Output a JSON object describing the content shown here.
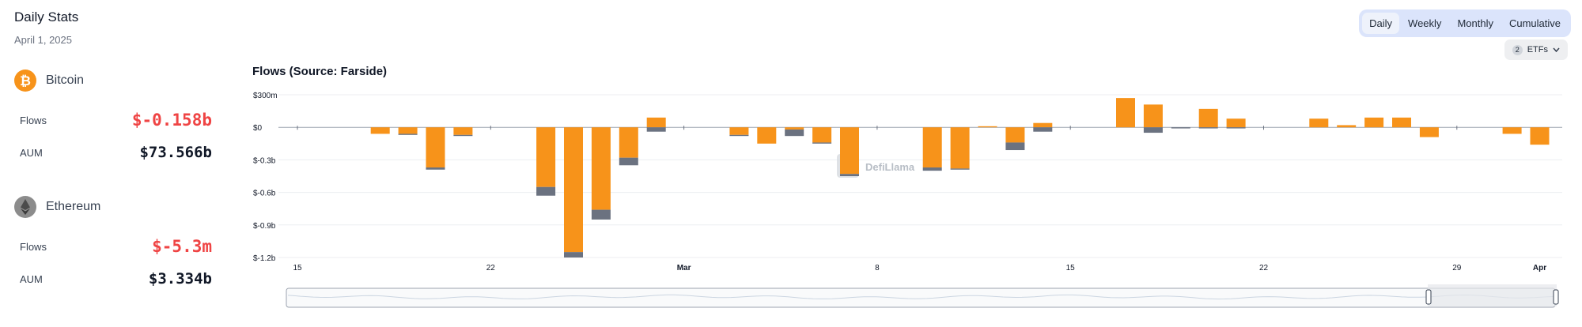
{
  "stats": {
    "title": "Daily Stats",
    "date": "April 1, 2025",
    "assets": [
      {
        "name": "Bitcoin",
        "icon": "bitcoin-icon",
        "color": "#f7931a",
        "flows_label": "Flows",
        "flows_value": "$-0.158b",
        "aum_label": "AUM",
        "aum_value": "$73.566b"
      },
      {
        "name": "Ethereum",
        "icon": "ethereum-icon",
        "color": "#8c8c8c",
        "flows_label": "Flows",
        "flows_value": "$-5.3m",
        "aum_label": "AUM",
        "aum_value": "$3.334b"
      }
    ]
  },
  "controls": {
    "tabs": [
      "Daily",
      "Weekly",
      "Monthly",
      "Cumulative"
    ],
    "active_tab": "Daily",
    "etf_count": "2",
    "etf_label": "ETFs"
  },
  "chart_data": {
    "type": "bar",
    "stacked": true,
    "title": "Flows (Source: Farside)",
    "watermark": "DefiLlama",
    "xlabel": "",
    "ylabel": "",
    "x_ticks": [
      {
        "day": 0,
        "label": "15"
      },
      {
        "day": 7,
        "label": "22"
      },
      {
        "day": 14,
        "label": "Mar",
        "bold": true
      },
      {
        "day": 21,
        "label": "8"
      },
      {
        "day": 28,
        "label": "15"
      },
      {
        "day": 35,
        "label": "22"
      },
      {
        "day": 42,
        "label": "29"
      },
      {
        "day": 45,
        "label": "Apr",
        "bold": true
      }
    ],
    "y_ticks": [
      {
        "value": 0.3,
        "label": "$300m"
      },
      {
        "value": 0,
        "label": "$0"
      },
      {
        "value": -0.3,
        "label": "$-0.3b"
      },
      {
        "value": -0.6,
        "label": "$-0.6b"
      },
      {
        "value": -0.9,
        "label": "$-0.9b"
      },
      {
        "value": -1.2,
        "label": "$-1.2b"
      }
    ],
    "ylim": [
      -1.2,
      0.3
    ],
    "grid": true,
    "x_days": [
      3,
      4,
      5,
      6,
      9,
      10,
      11,
      12,
      13,
      16,
      17,
      18,
      19,
      20,
      23,
      24,
      25,
      26,
      27,
      30,
      31,
      32,
      33,
      34,
      37,
      38,
      39,
      40,
      41,
      44,
      45
    ],
    "series": [
      {
        "color": "#f7931a",
        "values": [
          -0.06,
          -0.06,
          -0.37,
          -0.07,
          -0.55,
          -1.15,
          -0.76,
          -0.28,
          0.09,
          -0.07,
          -0.15,
          -0.02,
          -0.14,
          -0.43,
          -0.37,
          -0.38,
          0.01,
          -0.14,
          0.04,
          0.27,
          0.21,
          0.0,
          0.17,
          0.08,
          0.08,
          0.02,
          0.09,
          0.09,
          -0.09,
          -0.06,
          -0.16
        ]
      },
      {
        "color": "#6b7280",
        "values": [
          0.0,
          -0.01,
          -0.02,
          -0.01,
          -0.08,
          -0.05,
          -0.09,
          -0.07,
          -0.04,
          -0.01,
          0.0,
          -0.06,
          -0.01,
          -0.02,
          -0.03,
          -0.01,
          0.0,
          -0.07,
          -0.04,
          0.0,
          -0.05,
          -0.01,
          -0.01,
          -0.01,
          0.0,
          0.0,
          0.0,
          0.0,
          0.0,
          0.0,
          0.0
        ]
      }
    ]
  }
}
